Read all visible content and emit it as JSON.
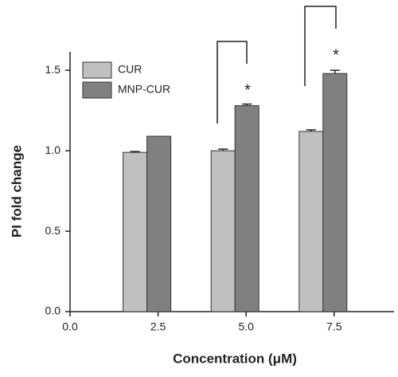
{
  "chart_data": {
    "type": "bar",
    "x_label": "Concentration (μM)",
    "y_label": "PI fold change",
    "categories": [
      2.5,
      5.0,
      7.5
    ],
    "series": [
      {
        "name": "CUR",
        "color": "#c0c0c0",
        "values": [
          0.99,
          1.0,
          1.12
        ],
        "errors": [
          0.005,
          0.01,
          0.01
        ]
      },
      {
        "name": "MNP-CUR",
        "color": "#808080",
        "values": [
          1.09,
          1.28,
          1.48
        ],
        "errors": [
          0,
          0.01,
          0.02
        ]
      }
    ],
    "xlim": [
      0,
      9.2
    ],
    "xticks": [
      {
        "value": 0,
        "label": "0.0"
      },
      {
        "value": 2.5,
        "label": "2.5"
      },
      {
        "value": 5,
        "label": "5.0"
      },
      {
        "value": 7.5,
        "label": "7.5"
      }
    ],
    "ylim": [
      0,
      1.6
    ],
    "yticks": [
      {
        "value": 0,
        "label": "0.0"
      },
      {
        "value": 0.5,
        "label": "0.5"
      },
      {
        "value": 1,
        "label": "1.0"
      },
      {
        "value": 1.5,
        "label": "1.5"
      }
    ],
    "legend": "upper left",
    "annotations": [
      {
        "text": "*"
      },
      {
        "text": "*"
      }
    ]
  }
}
